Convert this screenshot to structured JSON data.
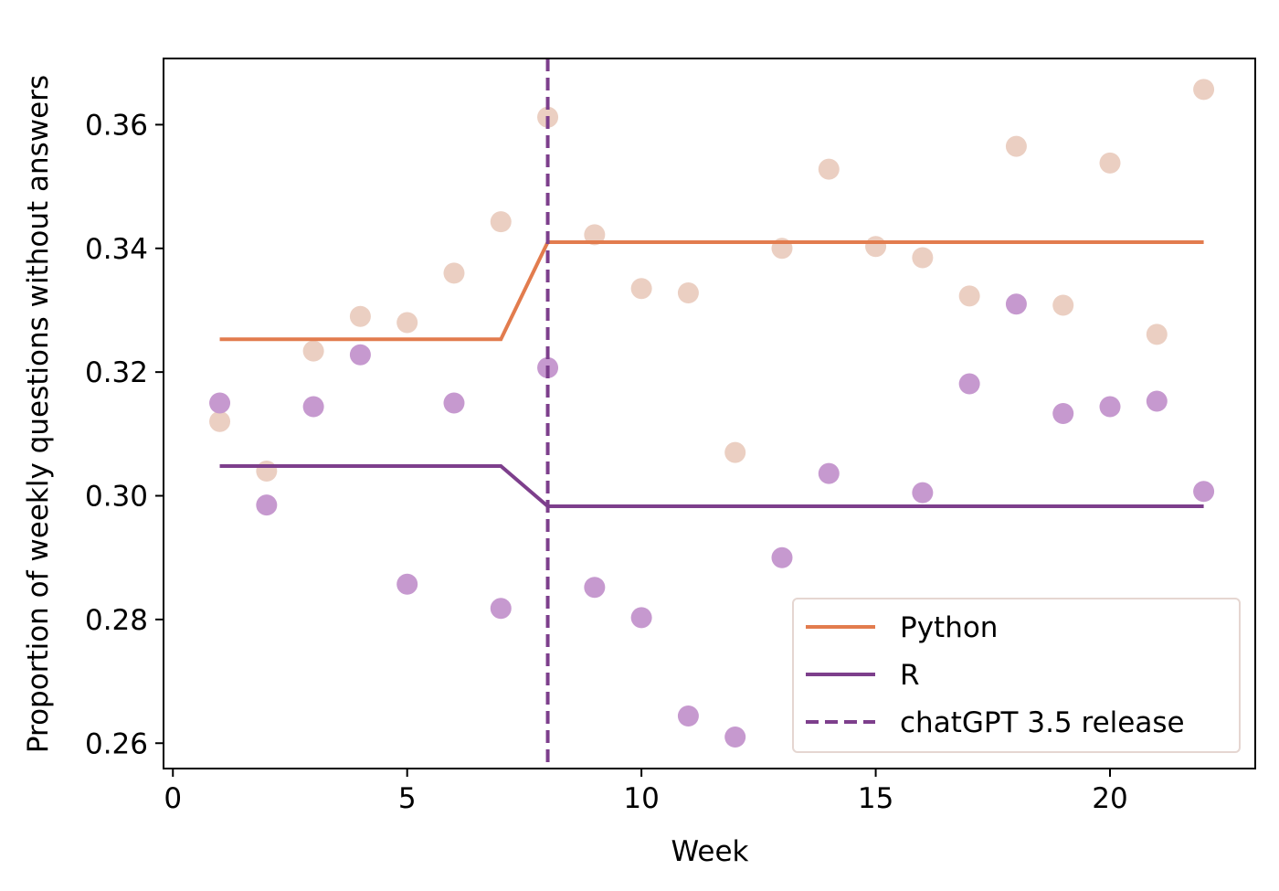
{
  "chart_data": {
    "type": "scatter",
    "xlabel": "Week",
    "ylabel": "Proportion of weekly questions without answers",
    "xlim": [
      -0.2,
      23.1
    ],
    "ylim": [
      0.2559,
      0.3707
    ],
    "xticks": [
      0,
      5,
      10,
      15,
      20
    ],
    "yticks": [
      0.26,
      0.28,
      0.3,
      0.32,
      0.34,
      0.36
    ],
    "ytick_labels": [
      "0.26",
      "0.28",
      "0.30",
      "0.32",
      "0.34",
      "0.36"
    ],
    "xtick_labels": [
      "0",
      "5",
      "10",
      "15",
      "20"
    ],
    "grid": false,
    "legend_position": "lower-right",
    "scatter_series": [
      {
        "name": "Python",
        "color": "#ebcfc2",
        "x": [
          1,
          2,
          3,
          4,
          5,
          6,
          7,
          8,
          9,
          10,
          11,
          12,
          13,
          14,
          15,
          16,
          17,
          18,
          19,
          20,
          21,
          22
        ],
        "y": [
          0.312,
          0.304,
          0.3234,
          0.329,
          0.328,
          0.336,
          0.3443,
          0.3612,
          0.3422,
          0.3335,
          0.3328,
          0.307,
          0.34,
          0.3528,
          0.3403,
          0.3385,
          0.3323,
          0.3565,
          0.3308,
          0.3538,
          0.3261,
          0.3657
        ]
      },
      {
        "name": "R",
        "color": "#c699cf",
        "x": [
          1,
          2,
          3,
          4,
          5,
          6,
          7,
          8,
          9,
          10,
          11,
          12,
          13,
          14,
          16,
          17,
          18,
          19,
          20,
          21,
          22
        ],
        "y": [
          0.315,
          0.2985,
          0.3144,
          0.3228,
          0.2857,
          0.315,
          0.2818,
          0.3207,
          0.2852,
          0.2803,
          0.2644,
          0.261,
          0.29,
          0.3036,
          0.3005,
          0.3181,
          0.331,
          0.3133,
          0.3144,
          0.3153,
          0.3007
        ]
      }
    ],
    "line_series": [
      {
        "name": "Python",
        "color": "#e27c4e",
        "x": [
          1,
          7,
          8,
          22
        ],
        "y": [
          0.3253,
          0.3253,
          0.341,
          0.341
        ]
      },
      {
        "name": "R",
        "color": "#7d3f8c",
        "x": [
          1,
          7,
          8,
          22
        ],
        "y": [
          0.3048,
          0.3048,
          0.2983,
          0.2983
        ]
      }
    ],
    "reference_line": {
      "name": "chatGPT 3.5 release",
      "x": 8,
      "color": "#7d3f8c",
      "style": "dashed"
    },
    "legend": [
      {
        "label": "Python",
        "color": "#e27c4e",
        "style": "solid"
      },
      {
        "label": "R",
        "color": "#7d3f8c",
        "style": "solid"
      },
      {
        "label": "chatGPT 3.5 release",
        "color": "#7d3f8c",
        "style": "dashed"
      }
    ]
  }
}
